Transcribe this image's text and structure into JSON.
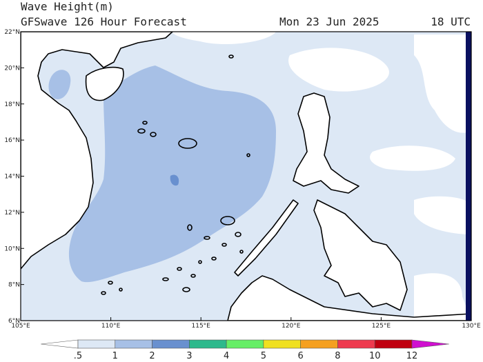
{
  "header": {
    "title": "Wave Height(m)",
    "subtitle": "GFSwave 126 Hour Forecast",
    "date": "Mon 23 Jun 2025",
    "time": "18 UTC"
  },
  "map": {
    "lon_ticks": [
      {
        "value": 105,
        "label": "105°E"
      },
      {
        "value": 110,
        "label": "110°E"
      },
      {
        "value": 115,
        "label": "115°E"
      },
      {
        "value": 120,
        "label": "120°E"
      },
      {
        "value": 125,
        "label": "125°E"
      },
      {
        "value": 130,
        "label": "130°E"
      }
    ],
    "lat_ticks": [
      {
        "value": 6,
        "label": "6°N"
      },
      {
        "value": 8,
        "label": "8°N"
      },
      {
        "value": 10,
        "label": "10°N"
      },
      {
        "value": 12,
        "label": "12°N"
      },
      {
        "value": 14,
        "label": "14°N"
      },
      {
        "value": 16,
        "label": "16°N"
      },
      {
        "value": 18,
        "label": "18°N"
      },
      {
        "value": 20,
        "label": "20°N"
      },
      {
        "value": 22,
        "label": "22°N"
      }
    ]
  },
  "colorbar": {
    "levels": [
      {
        "value": 0.5,
        "label": ".5"
      },
      1,
      2,
      3,
      4,
      5,
      6,
      8,
      10,
      12
    ],
    "colors": [
      "#ffffff",
      "#dde8f5",
      "#a7c0e6",
      "#6990cf",
      "#2db98c",
      "#66ee66",
      "#f0e020",
      "#f5a020",
      "#ee3a4e",
      "#c00010",
      "#d010d0"
    ]
  }
}
